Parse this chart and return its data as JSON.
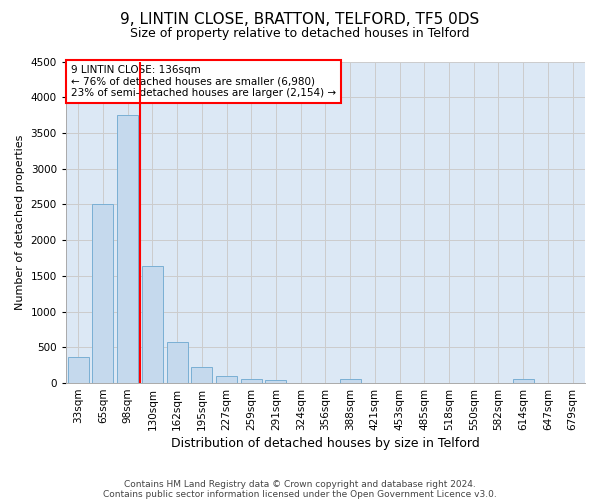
{
  "title": "9, LINTIN CLOSE, BRATTON, TELFORD, TF5 0DS",
  "subtitle": "Size of property relative to detached houses in Telford",
  "xlabel": "Distribution of detached houses by size in Telford",
  "ylabel": "Number of detached properties",
  "footnote1": "Contains HM Land Registry data © Crown copyright and database right 2024.",
  "footnote2": "Contains public sector information licensed under the Open Government Licence v3.0.",
  "categories": [
    "33sqm",
    "65sqm",
    "98sqm",
    "130sqm",
    "162sqm",
    "195sqm",
    "227sqm",
    "259sqm",
    "291sqm",
    "324sqm",
    "356sqm",
    "388sqm",
    "421sqm",
    "453sqm",
    "485sqm",
    "518sqm",
    "550sqm",
    "582sqm",
    "614sqm",
    "647sqm",
    "679sqm"
  ],
  "values": [
    370,
    2500,
    3750,
    1640,
    580,
    220,
    100,
    55,
    45,
    0,
    0,
    60,
    0,
    0,
    0,
    0,
    0,
    0,
    55,
    0,
    0
  ],
  "bar_color": "#c5d9ed",
  "bar_edge_color": "#7aafd4",
  "vline_color": "red",
  "vline_pos": 2.5,
  "annotation_title": "9 LINTIN CLOSE: 136sqm",
  "annotation_line1": "← 76% of detached houses are smaller (6,980)",
  "annotation_line2": "23% of semi-detached houses are larger (2,154) →",
  "ylim": [
    0,
    4500
  ],
  "yticks": [
    0,
    500,
    1000,
    1500,
    2000,
    2500,
    3000,
    3500,
    4000,
    4500
  ],
  "grid_color": "#cccccc",
  "bg_color": "#dce8f5",
  "title_fontsize": 11,
  "subtitle_fontsize": 9,
  "ylabel_fontsize": 8,
  "xlabel_fontsize": 9,
  "tick_fontsize": 7.5,
  "footnote_fontsize": 6.5
}
